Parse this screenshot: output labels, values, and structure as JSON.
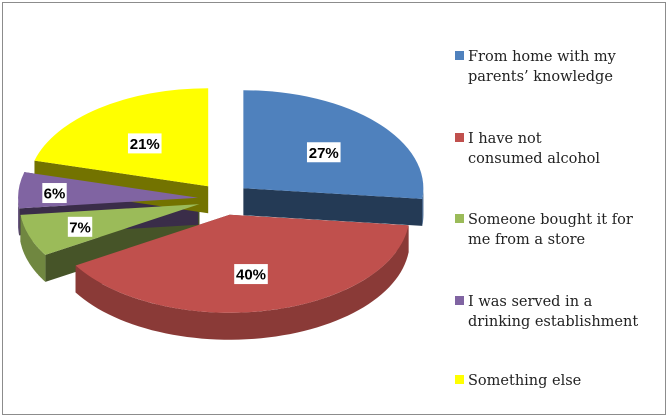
{
  "chart_data": {
    "type": "pie",
    "title": "",
    "style": "3d-exploded",
    "slices": [
      {
        "label": "From home with my parents’ knowledge",
        "value": 27,
        "value_label": "27%",
        "color": "#4f81bd"
      },
      {
        "label": "I have not consumed alcohol",
        "value": 40,
        "value_label": "40%",
        "color": "#c0504d"
      },
      {
        "label": "Someone bought it for me from a store",
        "value": 7,
        "value_label": "7%",
        "color": "#9bbb59"
      },
      {
        "label": "I was served in a drinking establishment",
        "value": 6,
        "value_label": "6%",
        "color": "#8064a2"
      },
      {
        "label": "Something else",
        "value": 21,
        "value_label": "21%",
        "color": "#ffff00"
      }
    ],
    "legend_position": "right"
  },
  "legend": {
    "items": [
      {
        "text": "From home with my\nparents’ knowledge",
        "color": "#4f81bd"
      },
      {
        "text": "I have not\nconsumed alcohol",
        "color": "#c0504d"
      },
      {
        "text": "Someone bought it for\nme from a store",
        "color": "#9bbb59"
      },
      {
        "text": "I was served in a\ndrinking establishment",
        "color": "#8064a2"
      },
      {
        "text": "Something else",
        "color": "#ffff00"
      }
    ]
  }
}
